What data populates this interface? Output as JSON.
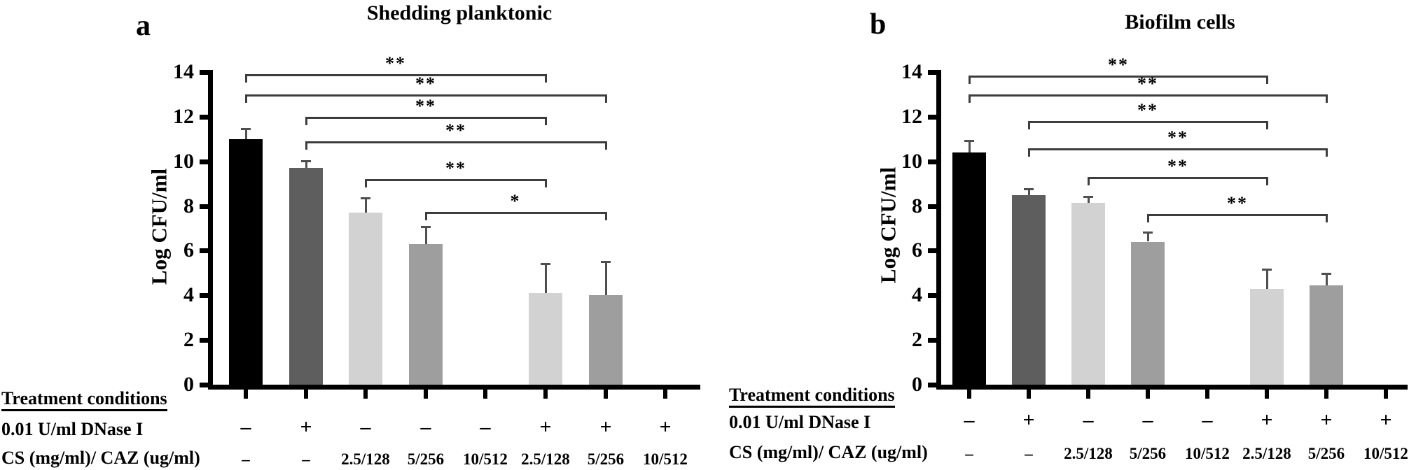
{
  "figure": {
    "treatment_header": "Treatment conditions",
    "row1_label": "0.01 U/ml DNase I",
    "row2_label": "CS (mg/ml)/ CAZ (ug/ml)",
    "colors": {
      "black_bar": "#000000",
      "dark_gray_bar": "#5e5e5e",
      "light_gray_bar": "#d2d2d2",
      "mid_gray_bar": "#9e9e9e",
      "error_bar": "#4f4f4f",
      "bracket": "#3d3d3d",
      "axis": "#000000",
      "background": "#ffffff"
    }
  },
  "chart_data": [
    {
      "type": "bar",
      "panel_label": "a",
      "title": "Shedding planktonic",
      "ylabel": "Log CFU/ml",
      "ylim": [
        0,
        14
      ],
      "yticks": [
        0,
        2,
        4,
        6,
        8,
        10,
        12,
        14
      ],
      "grid": false,
      "legend": "none",
      "dnase_row": [
        "–",
        "+",
        "–",
        "–",
        "–",
        "+",
        "+",
        "+"
      ],
      "cs_row": [
        "–",
        "–",
        "2.5/128",
        "5/256",
        "10/512",
        "2.5/128",
        "5/256",
        "10/512"
      ],
      "values": [
        11.0,
        9.7,
        7.7,
        6.3,
        0,
        4.1,
        4.0,
        0
      ],
      "errors": [
        0.5,
        0.35,
        0.7,
        0.8,
        0,
        1.35,
        1.55,
        0
      ],
      "bar_colors": [
        "#000000",
        "#5e5e5e",
        "#d2d2d2",
        "#9e9e9e",
        null,
        "#d2d2d2",
        "#9e9e9e",
        null
      ],
      "significance": [
        {
          "groups": [
            1,
            6
          ],
          "label": "**",
          "height": 13.9
        },
        {
          "groups": [
            1,
            7
          ],
          "label": "**",
          "height": 13.0
        },
        {
          "groups": [
            2,
            6
          ],
          "label": "**",
          "height": 12.0
        },
        {
          "groups": [
            2,
            7
          ],
          "label": "**",
          "height": 10.9
        },
        {
          "groups": [
            3,
            6
          ],
          "label": "**",
          "height": 9.2
        },
        {
          "groups": [
            4,
            7
          ],
          "label": "*",
          "height": 7.75
        }
      ]
    },
    {
      "type": "bar",
      "panel_label": "b",
      "title": "Biofilm cells",
      "ylabel": "Log CFU/ml",
      "ylim": [
        0,
        14
      ],
      "yticks": [
        0,
        2,
        4,
        6,
        8,
        10,
        12,
        14
      ],
      "grid": false,
      "legend": "none",
      "dnase_row": [
        "–",
        "+",
        "–",
        "–",
        "–",
        "+",
        "+",
        "+"
      ],
      "cs_row": [
        "–",
        "–",
        "2.5/128",
        "5/256",
        "10/512",
        "2.5/128",
        "5/256",
        "10/512"
      ],
      "values": [
        10.4,
        8.5,
        8.15,
        6.4,
        0,
        4.3,
        4.45,
        0
      ],
      "errors": [
        0.55,
        0.3,
        0.3,
        0.45,
        0,
        0.9,
        0.55,
        0
      ],
      "bar_colors": [
        "#000000",
        "#5e5e5e",
        "#d2d2d2",
        "#9e9e9e",
        null,
        "#d2d2d2",
        "#9e9e9e",
        null
      ],
      "significance": [
        {
          "groups": [
            1,
            6
          ],
          "label": "**",
          "height": 13.85
        },
        {
          "groups": [
            1,
            7
          ],
          "label": "**",
          "height": 13.0
        },
        {
          "groups": [
            2,
            6
          ],
          "label": "**",
          "height": 11.8
        },
        {
          "groups": [
            2,
            7
          ],
          "label": "**",
          "height": 10.6
        },
        {
          "groups": [
            3,
            6
          ],
          "label": "**",
          "height": 9.3
        },
        {
          "groups": [
            4,
            7
          ],
          "label": "**",
          "height": 7.65
        }
      ]
    }
  ]
}
